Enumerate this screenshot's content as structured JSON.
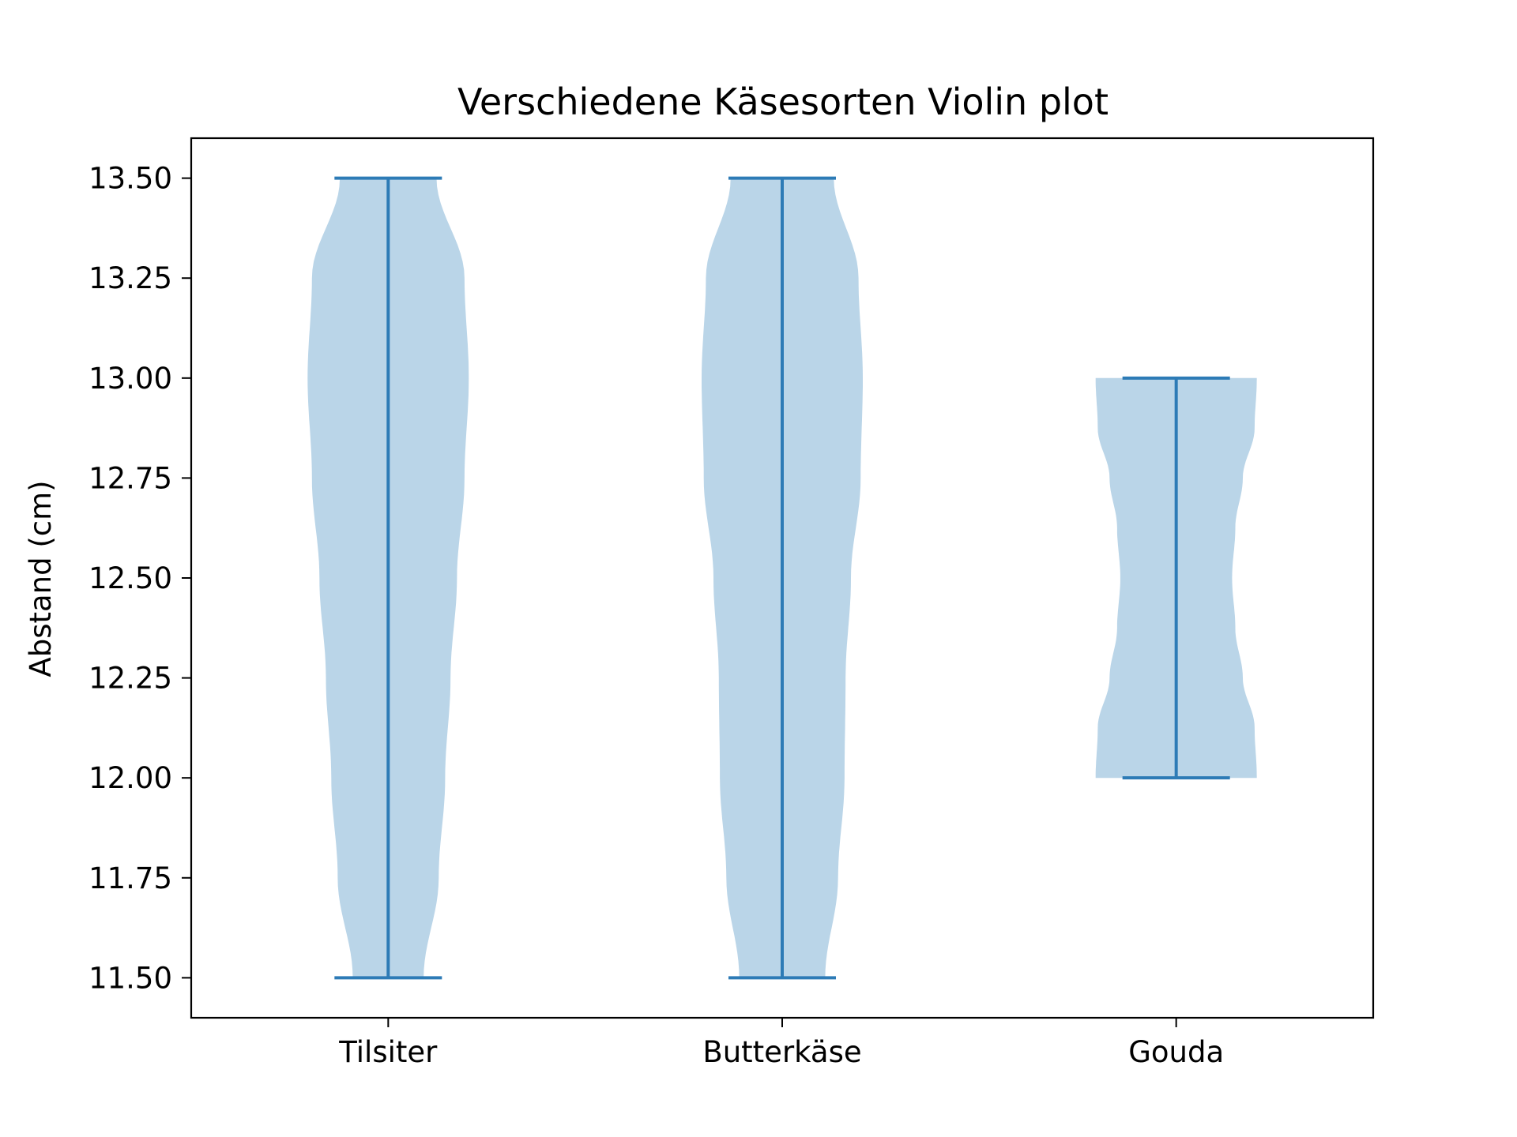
{
  "chart_data": {
    "type": "violin",
    "title": "Verschiedene Käsesorten Violin plot",
    "xlabel": "",
    "ylabel": "Abstand (cm)",
    "categories": [
      "Tilsiter",
      "Butterkäse",
      "Gouda"
    ],
    "ylim": [
      11.4,
      13.6
    ],
    "yticks": [
      11.5,
      11.75,
      12.0,
      12.25,
      12.5,
      12.75,
      13.0,
      13.25,
      13.5
    ],
    "ytick_labels": [
      "11.50",
      "11.75",
      "12.00",
      "12.25",
      "12.50",
      "12.75",
      "13.00",
      "13.25",
      "13.50"
    ],
    "grid": false,
    "legend": "none",
    "series": [
      {
        "category": "Tilsiter",
        "min": 11.5,
        "max": 13.5,
        "density_profile": [
          [
            11.5,
            0.33
          ],
          [
            11.75,
            0.47
          ],
          [
            12.0,
            0.53
          ],
          [
            12.25,
            0.58
          ],
          [
            12.5,
            0.64
          ],
          [
            12.75,
            0.71
          ],
          [
            13.0,
            0.75
          ],
          [
            13.25,
            0.71
          ],
          [
            13.5,
            0.45
          ]
        ]
      },
      {
        "category": "Butterkäse",
        "min": 11.5,
        "max": 13.5,
        "density_profile": [
          [
            11.5,
            0.4
          ],
          [
            11.75,
            0.52
          ],
          [
            12.0,
            0.58
          ],
          [
            12.25,
            0.59
          ],
          [
            12.5,
            0.64
          ],
          [
            12.75,
            0.73
          ],
          [
            13.0,
            0.75
          ],
          [
            13.25,
            0.71
          ],
          [
            13.5,
            0.48
          ]
        ]
      },
      {
        "category": "Gouda",
        "min": 12.0,
        "max": 13.0,
        "density_profile": [
          [
            12.0,
            0.75
          ],
          [
            12.125,
            0.73
          ],
          [
            12.25,
            0.62
          ],
          [
            12.375,
            0.55
          ],
          [
            12.5,
            0.52
          ],
          [
            12.625,
            0.55
          ],
          [
            12.75,
            0.62
          ],
          [
            12.875,
            0.73
          ],
          [
            13.0,
            0.75
          ]
        ]
      }
    ],
    "colors": {
      "body": "#bad5e8",
      "lines": "#2d7bb6",
      "frame": "#000000"
    }
  }
}
